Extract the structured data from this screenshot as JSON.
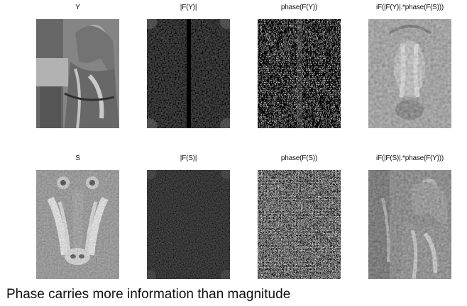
{
  "figure": {
    "rows": [
      {
        "panels": [
          {
            "label": "Y"
          },
          {
            "label": "|F(Y)|"
          },
          {
            "label": "phase(F(Y))"
          },
          {
            "label": "iF(|F(Y)|.*phase(F(S)))"
          }
        ]
      },
      {
        "panels": [
          {
            "label": "S"
          },
          {
            "label": "|F(S)|"
          },
          {
            "label": "phase(F(S))"
          },
          {
            "label": "iF(|F(S)|.*phase(F(Y)))"
          }
        ]
      }
    ],
    "caption": "Phase carries more information than magnitude"
  }
}
